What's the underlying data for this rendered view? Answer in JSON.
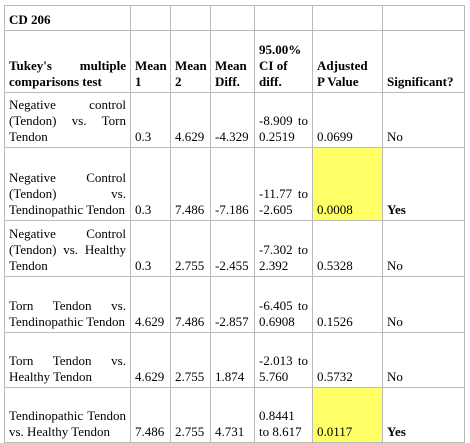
{
  "table_title": "CD 206",
  "headers": {
    "test": "Tukey's multiple comparisons test",
    "mean1": "Mean 1",
    "mean2": "Mean 2",
    "mean_diff": "Mean Diff.",
    "ci": "95.00% CI of diff.",
    "adjusted_p": "Adjusted P Value",
    "significant": "Significant?"
  },
  "rows": [
    {
      "test": "Negative control (Tendon) vs. Torn Tendon",
      "mean1": "0.3",
      "mean2": "4.629",
      "mean_diff": "-4.329",
      "ci": "-8.909 to 0.2519",
      "adjusted_p": "0.0699",
      "significant": "No",
      "highlight": false
    },
    {
      "test": "Negative Control (Tendon) vs. Tendinopathic Tendon",
      "mean1": "0.3",
      "mean2": "7.486",
      "mean_diff": "-7.186",
      "ci": "-11.77 to -2.605",
      "adjusted_p": "0.0008",
      "significant": "Yes",
      "highlight": true
    },
    {
      "test": "Negative Control (Tendon) vs. Healthy Tendon",
      "mean1": "0.3",
      "mean2": "2.755",
      "mean_diff": "-2.455",
      "ci": "-7.302 to 2.392",
      "adjusted_p": "0.5328",
      "significant": "No",
      "highlight": false
    },
    {
      "test": "Torn Tendon vs. Tendinopathic Tendon",
      "mean1": "4.629",
      "mean2": "7.486",
      "mean_diff": "-2.857",
      "ci": "-6.405 to 0.6908",
      "adjusted_p": "0.1526",
      "significant": "No",
      "highlight": false
    },
    {
      "test": "Torn Tendon vs. Healthy Tendon",
      "mean1": "4.629",
      "mean2": "2.755",
      "mean_diff": "1.874",
      "ci": "-2.013 to 5.760",
      "adjusted_p": "0.5732",
      "significant": "No",
      "highlight": false
    },
    {
      "test": "Tendinopathic Tendon vs. Healthy Tendon",
      "mean1": "7.486",
      "mean2": "2.755",
      "mean_diff": "4.731",
      "ci": "0.8441 to 8.617",
      "adjusted_p": "0.0117",
      "significant": "Yes",
      "highlight": true
    }
  ],
  "colors": {
    "highlight": "#ffff66",
    "border": "#b9b9b9"
  }
}
